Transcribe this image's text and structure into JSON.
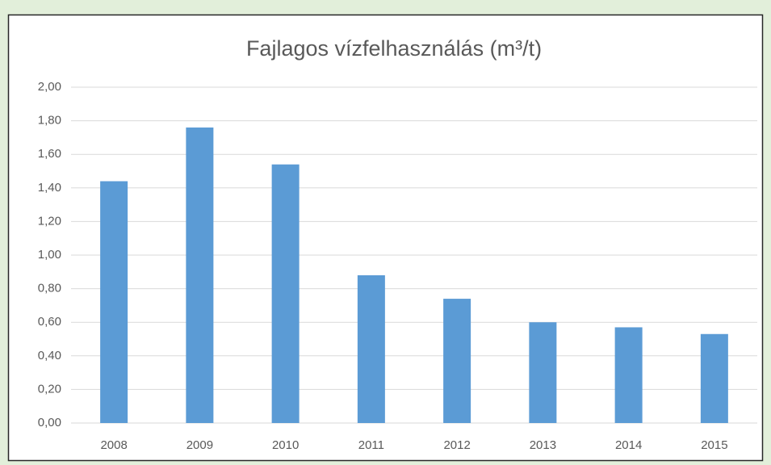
{
  "chart_data": {
    "type": "bar",
    "title": "Fajlagos vízfelhasználás (m³/t)",
    "categories": [
      "2008",
      "2009",
      "2010",
      "2011",
      "2012",
      "2013",
      "2014",
      "2015"
    ],
    "values": [
      1.44,
      1.76,
      1.54,
      0.88,
      0.74,
      0.6,
      0.57,
      0.53
    ],
    "color": "#5b9bd5",
    "ylim": [
      0,
      2
    ],
    "yticks": [
      {
        "value": 0,
        "label": "0,00"
      },
      {
        "value": 0.2,
        "label": "0,20"
      },
      {
        "value": 0.4,
        "label": "0,40"
      },
      {
        "value": 0.6,
        "label": "0,60"
      },
      {
        "value": 0.8,
        "label": "0,80"
      },
      {
        "value": 1,
        "label": "1,00"
      },
      {
        "value": 1.2,
        "label": "1,20"
      },
      {
        "value": 1.4,
        "label": "1,40"
      },
      {
        "value": 1.6,
        "label": "1,60"
      },
      {
        "value": 1.8,
        "label": "1,80"
      },
      {
        "value": 2,
        "label": "2,00"
      }
    ],
    "grid": true
  }
}
